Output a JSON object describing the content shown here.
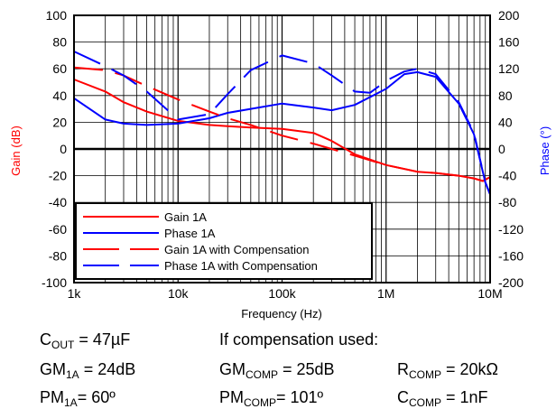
{
  "chart_data": {
    "type": "line",
    "xlabel": "Frequency (Hz)",
    "y_left_label": "Gain (dB)",
    "y_right_label": "Phase (°)",
    "x_scale": "log",
    "xlim": [
      1000,
      10000000
    ],
    "y_left_lim": [
      -100,
      100
    ],
    "y_right_lim": [
      -200,
      200
    ],
    "x_ticks": [
      {
        "v": 1000,
        "label": "1k"
      },
      {
        "v": 10000,
        "label": "10k"
      },
      {
        "v": 100000,
        "label": "100k"
      },
      {
        "v": 1000000,
        "label": "1M"
      },
      {
        "v": 10000000,
        "label": "10M"
      }
    ],
    "y_left_ticks": [
      -100,
      -80,
      -60,
      -40,
      -20,
      0,
      20,
      40,
      60,
      80,
      100
    ],
    "y_right_ticks": [
      -200,
      -160,
      -120,
      -80,
      -40,
      0,
      40,
      80,
      120,
      160,
      200
    ],
    "grid": true,
    "legend_position": "bottom-left",
    "colors": {
      "gain": "#ff0000",
      "phase": "#0000ff"
    },
    "series": [
      {
        "name": "Gain 1A",
        "axis": "left",
        "color": "#ff0000",
        "dash": false,
        "points": [
          [
            1000,
            52
          ],
          [
            2000,
            43
          ],
          [
            3000,
            35
          ],
          [
            5000,
            28
          ],
          [
            10000,
            21
          ],
          [
            20000,
            18
          ],
          [
            30000,
            17
          ],
          [
            50000,
            16
          ],
          [
            100000,
            15
          ],
          [
            200000,
            12
          ],
          [
            300000,
            6
          ],
          [
            500000,
            -4
          ],
          [
            1000000,
            -12
          ],
          [
            2000000,
            -17
          ],
          [
            3000000,
            -18
          ],
          [
            5000000,
            -20
          ],
          [
            7000000,
            -22
          ],
          [
            8500000,
            -24
          ],
          [
            10000000,
            -21
          ]
        ]
      },
      {
        "name": "Phase 1A",
        "axis": "right",
        "color": "#0000ff",
        "dash": false,
        "points": [
          [
            1000,
            76
          ],
          [
            2000,
            44
          ],
          [
            3000,
            38
          ],
          [
            5000,
            36
          ],
          [
            10000,
            38
          ],
          [
            20000,
            46
          ],
          [
            30000,
            54
          ],
          [
            50000,
            60
          ],
          [
            100000,
            68
          ],
          [
            200000,
            62
          ],
          [
            300000,
            58
          ],
          [
            500000,
            66
          ],
          [
            1000000,
            90
          ],
          [
            1500000,
            112
          ],
          [
            2000000,
            115
          ],
          [
            3000000,
            108
          ],
          [
            5000000,
            68
          ],
          [
            7000000,
            22
          ],
          [
            9000000,
            -50
          ],
          [
            10000000,
            -68
          ]
        ]
      },
      {
        "name": "Gain  1A with Compensation",
        "axis": "left",
        "color": "#ff0000",
        "dash": true,
        "points": [
          [
            1000,
            61
          ],
          [
            2000,
            59
          ],
          [
            3000,
            55
          ],
          [
            5000,
            47
          ],
          [
            10000,
            37
          ],
          [
            20000,
            28
          ],
          [
            30000,
            23
          ],
          [
            50000,
            18
          ],
          [
            100000,
            10
          ],
          [
            200000,
            4
          ],
          [
            300000,
            0
          ],
          [
            500000,
            -5
          ],
          [
            1000000,
            -12
          ],
          [
            2000000,
            -17
          ],
          [
            3000000,
            -18
          ],
          [
            5000000,
            -20
          ],
          [
            7000000,
            -22
          ],
          [
            8500000,
            -24
          ],
          [
            10000000,
            -21
          ]
        ]
      },
      {
        "name": "Phase 1A with Compensation",
        "axis": "right",
        "color": "#0000ff",
        "dash": true,
        "points": [
          [
            1000,
            146
          ],
          [
            2000,
            124
          ],
          [
            3000,
            110
          ],
          [
            5000,
            86
          ],
          [
            10000,
            44
          ],
          [
            20000,
            52
          ],
          [
            30000,
            82
          ],
          [
            50000,
            118
          ],
          [
            100000,
            140
          ],
          [
            200000,
            128
          ],
          [
            300000,
            110
          ],
          [
            500000,
            86
          ],
          [
            700000,
            84
          ],
          [
            1000000,
            102
          ],
          [
            1500000,
            116
          ],
          [
            2000000,
            120
          ],
          [
            3000000,
            112
          ],
          [
            5000000,
            70
          ],
          [
            7000000,
            24
          ],
          [
            9000000,
            -50
          ],
          [
            10000000,
            -68
          ]
        ]
      }
    ]
  },
  "legend": [
    {
      "label": "Gain 1A",
      "color": "#ff0000",
      "dash": false
    },
    {
      "label": "Phase 1A",
      "color": "#0000ff",
      "dash": false
    },
    {
      "label": "Gain  1A with Compensation",
      "color": "#ff0000",
      "dash": true
    },
    {
      "label": "Phase 1A with Compensation",
      "color": "#0000ff",
      "dash": true
    }
  ],
  "info": {
    "cout_main": "C",
    "cout_sub": "OUT",
    "cout_val": " = 47µF",
    "gm1a_main": "GM",
    "gm1a_sub": "1A",
    "gm1a_val": " = 24dB",
    "pm1a_main": "PM",
    "pm1a_sub": "1A",
    "pm1a_val": "= 60º",
    "comp_heading": "If compensation used:",
    "gmcomp_main": "GM",
    "gmcomp_sub": "COMP",
    "gmcomp_val": " = 25dB",
    "pmcomp_main": "PM",
    "pmcomp_sub": "COMP",
    "pmcomp_val": "= 101º",
    "rcomp_main": "R",
    "rcomp_sub": "COMP",
    "rcomp_val": " = 20kΩ",
    "ccomp_main": "C",
    "ccomp_sub": "COMP",
    "ccomp_val": " = 1nF"
  }
}
